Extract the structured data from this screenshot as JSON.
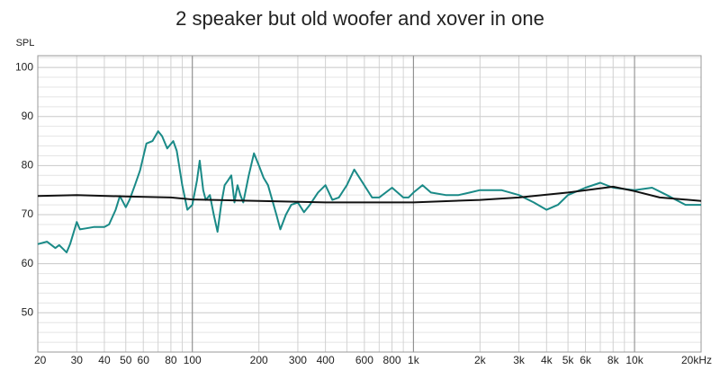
{
  "chart_data": {
    "type": "line",
    "title": "2 speaker but old woofer and xover in one",
    "y_label": "SPL",
    "x_scale": "log",
    "grid": true,
    "xlim": [
      20,
      20000
    ],
    "ylim": [
      42,
      102.4
    ],
    "yticks": [
      50,
      60,
      70,
      80,
      90,
      100
    ],
    "y_minor_ticks": [
      44,
      46,
      48,
      52,
      54,
      56,
      58,
      62,
      64,
      66,
      68,
      72,
      74,
      76,
      78,
      82,
      84,
      86,
      88,
      92,
      94,
      96,
      98,
      102
    ],
    "xticks": [
      20,
      30,
      40,
      50,
      60,
      80,
      100,
      200,
      300,
      400,
      600,
      800,
      {
        "value": 1000,
        "label": "1k"
      },
      {
        "value": 2000,
        "label": "2k"
      },
      {
        "value": 3000,
        "label": "3k"
      },
      {
        "value": 4000,
        "label": "4k"
      },
      {
        "value": 5000,
        "label": "5k"
      },
      {
        "value": 6000,
        "label": "6k"
      },
      {
        "value": 8000,
        "label": "8k"
      },
      {
        "value": 10000,
        "label": "10k"
      },
      {
        "value": 20000,
        "label": "20kHz"
      }
    ],
    "x_major_grid": [
      100,
      1000,
      10000
    ],
    "x_minor_ticks": [
      70,
      90,
      500,
      700,
      900,
      7000,
      9000
    ],
    "series": [
      {
        "color": "#1a8a87",
        "x": [
          20,
          22,
          24,
          25,
          27,
          28,
          30,
          31,
          33,
          36,
          40,
          42,
          45,
          47,
          50,
          52,
          55,
          58,
          62,
          66,
          70,
          73,
          77,
          82,
          85,
          90,
          95,
          100,
          105,
          108,
          112,
          115,
          120,
          125,
          130,
          135,
          140,
          145,
          150,
          155,
          160,
          165,
          170,
          180,
          190,
          200,
          210,
          220,
          240,
          250,
          265,
          280,
          300,
          320,
          340,
          370,
          400,
          430,
          460,
          500,
          540,
          580,
          650,
          700,
          800,
          900,
          950,
          1000,
          1100,
          1200,
          1400,
          1600,
          1800,
          2000,
          2500,
          3000,
          3500,
          4000,
          4500,
          5000,
          6000,
          7000,
          8000,
          10000,
          12000,
          14000,
          17000,
          20000
        ],
        "values": [
          64,
          64.5,
          63.2,
          63.8,
          62.3,
          64,
          68.5,
          67,
          67.2,
          67.5,
          67.5,
          68,
          71,
          73.8,
          71.5,
          73,
          76,
          79,
          84.5,
          85,
          87,
          86,
          83.5,
          85,
          83,
          76,
          71,
          72,
          77,
          81,
          75,
          73,
          74,
          70,
          66.5,
          72,
          76,
          77,
          78,
          72.5,
          76,
          74,
          72.5,
          78,
          82.5,
          80,
          77.5,
          76,
          70,
          67,
          70,
          72,
          72.5,
          70.5,
          72,
          74.5,
          76,
          73,
          73.5,
          76,
          79.2,
          77,
          73.5,
          73.5,
          75.5,
          73.5,
          73.5,
          74.5,
          76,
          74.5,
          74,
          74,
          74.5,
          75,
          75,
          74,
          72.5,
          71,
          72,
          74,
          75.5,
          76.5,
          75.5,
          75,
          75.5,
          74,
          72,
          72
        ]
      },
      {
        "color": "#111111",
        "x": [
          20,
          30,
          50,
          80,
          100,
          200,
          400,
          1000,
          2000,
          3000,
          5000,
          8000,
          10000,
          13000,
          20000
        ],
        "values": [
          73.8,
          74,
          73.7,
          73.5,
          73.1,
          72.8,
          72.5,
          72.5,
          73,
          73.5,
          74.5,
          75.7,
          74.8,
          73.5,
          72.8
        ]
      }
    ]
  }
}
